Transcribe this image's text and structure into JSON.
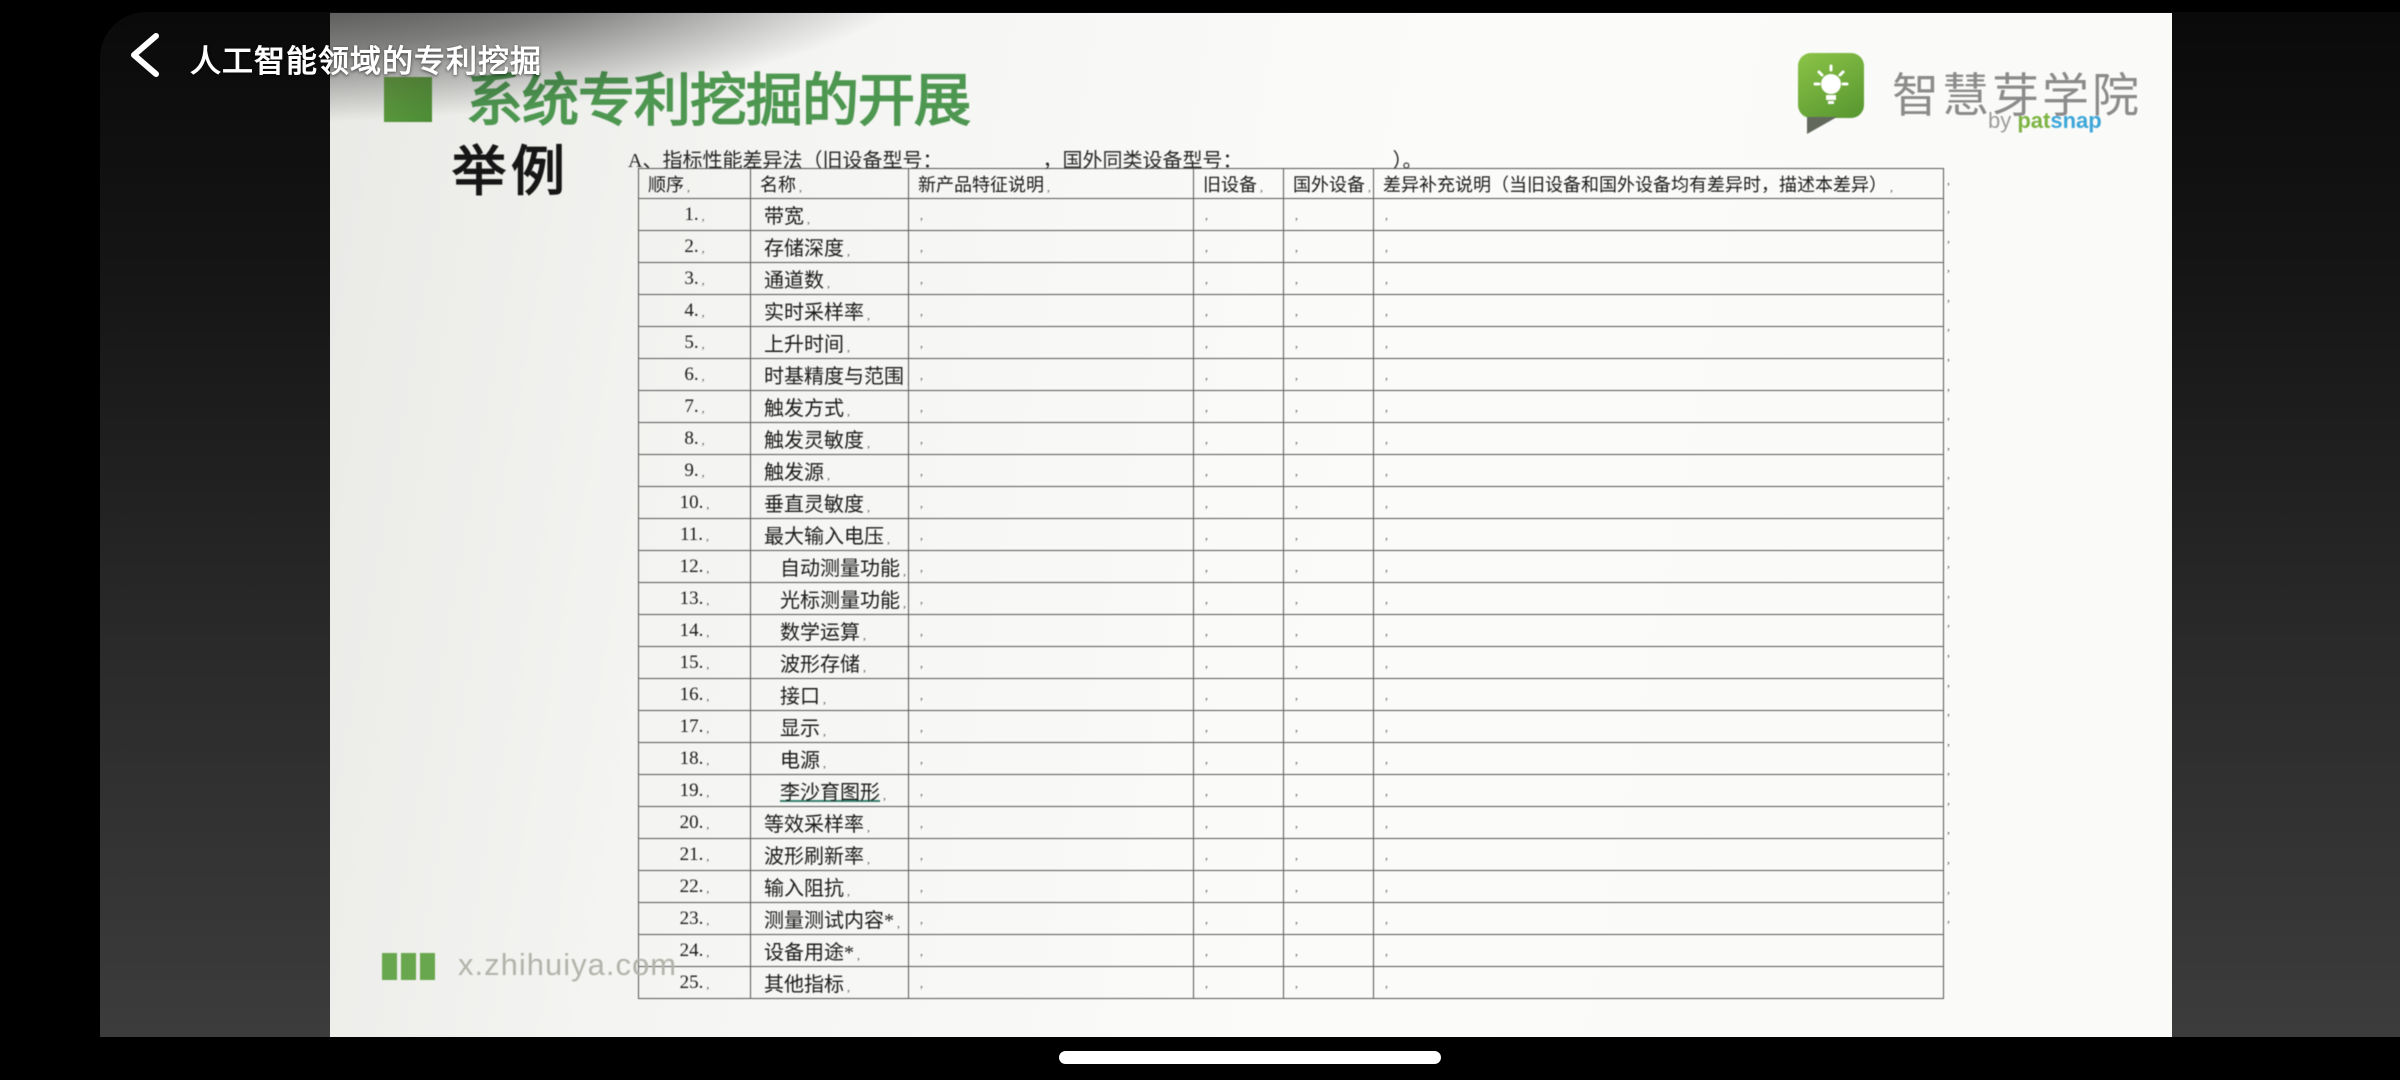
{
  "player": {
    "title": "人工智能领域的专利挖掘"
  },
  "slide": {
    "heading": "系统专利挖掘的开展",
    "example_label": "举例",
    "method_line": {
      "prefix": "A、指标性能差异法（旧设备型号：",
      "middle": "，国外同类设备型号：",
      "suffix": "）。"
    },
    "table": {
      "mark": ",",
      "headers": [
        "顺序",
        "名称",
        "新产品特征说明",
        "旧设备",
        "国外设备",
        "差异补充说明（当旧设备和国外设备均有差异时，描述本差异）"
      ],
      "rows": [
        {
          "no": "1.",
          "name": "带宽"
        },
        {
          "no": "2.",
          "name": "存储深度"
        },
        {
          "no": "3.",
          "name": "通道数"
        },
        {
          "no": "4.",
          "name": "实时采样率"
        },
        {
          "no": "5.",
          "name": "上升时间"
        },
        {
          "no": "6.",
          "name": "时基精度与范围"
        },
        {
          "no": "7.",
          "name": "触发方式"
        },
        {
          "no": "8.",
          "name": "触发灵敏度"
        },
        {
          "no": "9.",
          "name": "触发源"
        },
        {
          "no": "10.",
          "name": "垂直灵敏度"
        },
        {
          "no": "11.",
          "name": "最大输入电压"
        },
        {
          "no": "12.",
          "name": "自动测量功能",
          "indent": true
        },
        {
          "no": "13.",
          "name": "光标测量功能",
          "indent": true
        },
        {
          "no": "14.",
          "name": "数学运算",
          "indent": true
        },
        {
          "no": "15.",
          "name": "波形存储",
          "indent": true
        },
        {
          "no": "16.",
          "name": "接口",
          "indent": true
        },
        {
          "no": "17.",
          "name": "显示",
          "indent": true
        },
        {
          "no": "18.",
          "name": "电源",
          "indent": true
        },
        {
          "no": "19.",
          "name": "李沙育图形",
          "indent": true,
          "underline": true
        },
        {
          "no": "20.",
          "name": "等效采样率"
        },
        {
          "no": "21.",
          "name": "波形刷新率"
        },
        {
          "no": "22.",
          "name": "输入阻抗"
        },
        {
          "no": "23.",
          "name": "测量测试内容*"
        },
        {
          "no": "24.",
          "name": "设备用途*"
        },
        {
          "no": "25.",
          "name": "其他指标"
        }
      ]
    },
    "footer": {
      "site": "x.zhihuiya.com"
    },
    "brand": {
      "name": "智慧芽学院",
      "byline_by": "by ",
      "byline_pat": "pat",
      "byline_snap": "snap"
    }
  },
  "colors": {
    "heading_green": "#4e9751",
    "square_green": "#5a9e3c",
    "footer_bar_green": "#68a74d",
    "site_gray": "#b3b3ab",
    "brand_gray": "#8b8b8b",
    "brand_pat_green": "#7cb342",
    "brand_snap_blue": "#3ba6d8"
  }
}
